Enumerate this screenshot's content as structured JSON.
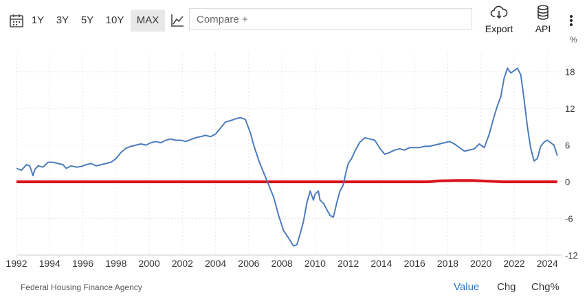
{
  "toolbar": {
    "ranges": [
      "1Y",
      "3Y",
      "5Y",
      "10Y",
      "MAX"
    ],
    "active_range": "MAX",
    "compare_placeholder": "Compare +",
    "export_label": "Export",
    "api_label": "API"
  },
  "footer": {
    "source": "Federal Housing Finance Agency",
    "tabs": [
      "Value",
      "Chg",
      "Chg%"
    ],
    "active_tab": "Value"
  },
  "colors": {
    "series": "#4a7bbd",
    "zero_line": "#d9141c",
    "active_tab": "#1f77d0",
    "grid": "#e6e6e6"
  },
  "icons": [
    "calendar-icon",
    "line-chart-icon",
    "cloud-download-icon",
    "database-icon",
    "more-vertical-icon"
  ],
  "chart_data": {
    "type": "line",
    "y_unit_label": "%",
    "ylim": [
      -12,
      21
    ],
    "xlim": [
      1992,
      2024.9
    ],
    "yticks": [
      18,
      12,
      6,
      0,
      -6,
      -12
    ],
    "xticks": [
      1992,
      1994,
      1996,
      1998,
      2000,
      2002,
      2004,
      2006,
      2008,
      2010,
      2012,
      2014,
      2016,
      2018,
      2020,
      2022,
      2024
    ],
    "grid": true,
    "series": [
      {
        "x": [
          1992.0,
          1992.3,
          1992.6,
          1992.8,
          1993.0,
          1993.1,
          1993.3,
          1993.6,
          1993.9,
          1994.2,
          1994.5,
          1994.8,
          1995.0,
          1995.3,
          1995.6,
          1995.9,
          1996.2,
          1996.5,
          1996.8,
          1997.1,
          1997.4,
          1997.7,
          1998.0,
          1998.3,
          1998.6,
          1998.9,
          1999.2,
          1999.5,
          1999.8,
          2000.1,
          2000.4,
          2000.7,
          2001.0,
          2001.3,
          2001.6,
          2001.9,
          2002.2,
          2002.5,
          2002.8,
          2003.1,
          2003.4,
          2003.7,
          2004.0,
          2004.3,
          2004.6,
          2004.9,
          2005.2,
          2005.5,
          2005.8,
          2006.1,
          2006.3,
          2006.6,
          2006.9,
          2007.2,
          2007.5,
          2007.8,
          2008.1,
          2008.4,
          2008.7,
          2008.9,
          2009.1,
          2009.3,
          2009.5,
          2009.7,
          2009.9,
          2010.0,
          2010.2,
          2010.3,
          2010.5,
          2010.7,
          2010.9,
          2011.1,
          2011.3,
          2011.5,
          2011.7,
          2011.9,
          2012.0,
          2012.2,
          2012.4,
          2012.7,
          2013.0,
          2013.3,
          2013.6,
          2013.9,
          2014.2,
          2014.5,
          2014.8,
          2015.1,
          2015.4,
          2015.7,
          2016.0,
          2016.3,
          2016.6,
          2016.9,
          2017.2,
          2017.5,
          2017.8,
          2018.1,
          2018.4,
          2018.7,
          2019.0,
          2019.3,
          2019.6,
          2019.9,
          2020.2,
          2020.5,
          2020.8,
          2021.0,
          2021.2,
          2021.4,
          2021.6,
          2021.8,
          2022.0,
          2022.2,
          2022.4,
          2022.6,
          2022.8,
          2023.0,
          2023.2,
          2023.4,
          2023.6,
          2023.8,
          2024.0,
          2024.2,
          2024.4,
          2024.6
        ],
        "y": [
          2.2,
          1.9,
          2.8,
          2.6,
          1.0,
          2.0,
          2.6,
          2.4,
          3.2,
          3.2,
          3.0,
          2.8,
          2.2,
          2.6,
          2.4,
          2.5,
          2.8,
          3.0,
          2.6,
          2.8,
          3.0,
          3.2,
          3.8,
          4.8,
          5.5,
          5.8,
          6.0,
          6.2,
          6.0,
          6.4,
          6.6,
          6.4,
          6.8,
          7.0,
          6.8,
          6.8,
          6.6,
          6.9,
          7.2,
          7.4,
          7.6,
          7.4,
          7.8,
          8.8,
          9.8,
          10.0,
          10.3,
          10.5,
          10.2,
          8.0,
          6.0,
          3.5,
          1.5,
          -0.5,
          -2.5,
          -5.5,
          -8.0,
          -9.2,
          -10.5,
          -10.3,
          -8.5,
          -6.5,
          -3.5,
          -1.5,
          -3.0,
          -2.0,
          -1.5,
          -3.0,
          -3.5,
          -4.5,
          -5.5,
          -5.8,
          -3.5,
          -1.5,
          -0.5,
          2.0,
          3.0,
          3.8,
          5.0,
          6.5,
          7.2,
          7.0,
          6.8,
          5.5,
          4.5,
          4.8,
          5.2,
          5.4,
          5.2,
          5.6,
          5.6,
          5.6,
          5.8,
          5.8,
          6.0,
          6.2,
          6.4,
          6.6,
          6.2,
          5.6,
          5.0,
          5.2,
          5.4,
          6.2,
          5.6,
          7.8,
          10.8,
          12.5,
          14.0,
          17.0,
          18.6,
          17.8,
          18.2,
          18.6,
          17.5,
          13.5,
          9.0,
          5.5,
          3.4,
          3.8,
          5.8,
          6.5,
          6.8,
          6.4,
          6.0,
          4.3
        ]
      },
      {
        "x": [
          1992.0,
          1994,
          1996,
          1998,
          2000,
          2002,
          2004,
          2006,
          2008,
          2010,
          2012,
          2014,
          2016,
          2016.8,
          2017.5,
          2018.5,
          2019.5,
          2020.5,
          2021.3,
          2022.5,
          2023.5,
          2024.6
        ],
        "y": [
          0,
          0,
          0,
          0,
          0,
          0,
          0,
          0,
          0,
          0,
          0,
          0,
          0,
          0,
          0.15,
          0.2,
          0.2,
          0.1,
          0,
          0,
          0,
          0
        ]
      }
    ]
  }
}
